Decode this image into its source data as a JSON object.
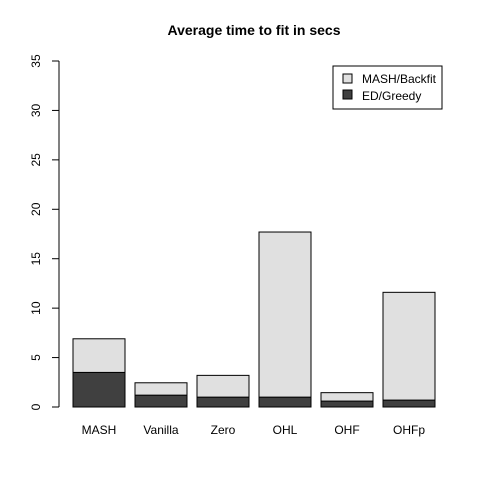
{
  "chart_data": {
    "type": "bar",
    "stacked": true,
    "title": "Average time to fit in secs",
    "xlabel": "",
    "ylabel": "",
    "categories": [
      "MASH",
      "Vanilla",
      "Zero",
      "OHL",
      "OHF",
      "OHFp"
    ],
    "series": [
      {
        "name": "ED/Greedy",
        "color": "#404040",
        "values": [
          3.5,
          1.2,
          1.0,
          1.0,
          0.6,
          0.7
        ]
      },
      {
        "name": "MASH/Backfit",
        "color": "#e0e0e0",
        "values": [
          3.4,
          1.25,
          2.2,
          16.7,
          0.85,
          10.9
        ]
      }
    ],
    "ylim": [
      0,
      35
    ],
    "yticks": [
      0,
      5,
      10,
      15,
      20,
      25,
      30,
      35
    ],
    "grid": false,
    "legend": {
      "position": "top-right",
      "entries": [
        {
          "label": "MASH/Backfit",
          "color": "#e0e0e0"
        },
        {
          "label": "ED/Greedy",
          "color": "#404040"
        }
      ]
    }
  }
}
